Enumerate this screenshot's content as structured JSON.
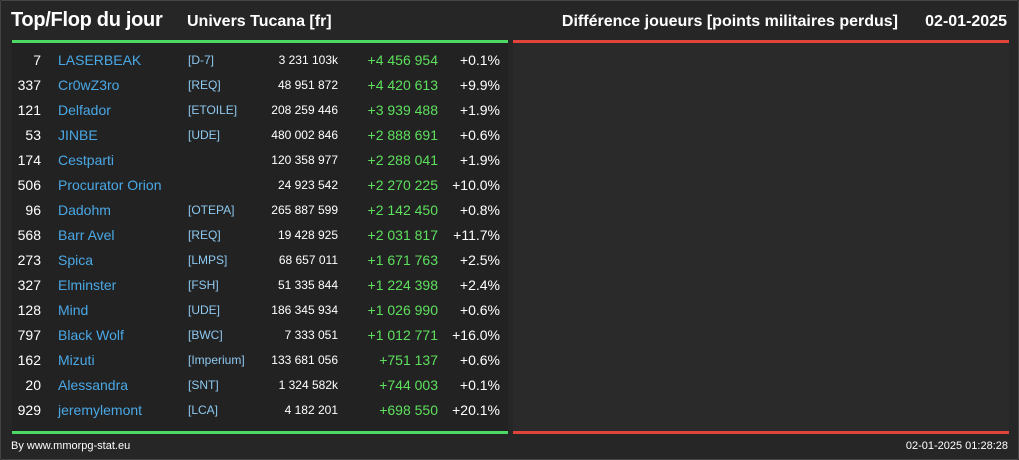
{
  "header": {
    "title": "Top/Flop du jour",
    "universe": "Univers Tucana [fr]",
    "metric": "Différence joueurs [points militaires perdus]",
    "date": "02-01-2025"
  },
  "colors": {
    "positive_bar": "#4cd964",
    "negative_bar": "#e0443a",
    "player_name": "#4aa8e6",
    "alliance": "#8ec9f0",
    "diff_positive": "#5ee05e"
  },
  "top_rows": [
    {
      "rank": "7",
      "name": "LASERBEAK",
      "alliance": "[D-7]",
      "points": "3 231 103k",
      "diff": "+4 456 954",
      "pct": "+0.1%"
    },
    {
      "rank": "337",
      "name": "Cr0wZ3ro",
      "alliance": "[REQ]",
      "points": "48 951 872",
      "diff": "+4 420 613",
      "pct": "+9.9%"
    },
    {
      "rank": "121",
      "name": "Delfador",
      "alliance": "[ETOILE]",
      "points": "208 259 446",
      "diff": "+3 939 488",
      "pct": "+1.9%"
    },
    {
      "rank": "53",
      "name": "JINBE",
      "alliance": "[UDE]",
      "points": "480 002 846",
      "diff": "+2 888 691",
      "pct": "+0.6%"
    },
    {
      "rank": "174",
      "name": "Cestparti",
      "alliance": "",
      "points": "120 358 977",
      "diff": "+2 288 041",
      "pct": "+1.9%"
    },
    {
      "rank": "506",
      "name": "Procurator Orion",
      "alliance": "",
      "points": "24 923 542",
      "diff": "+2 270 225",
      "pct": "+10.0%"
    },
    {
      "rank": "96",
      "name": "Dadohm",
      "alliance": "[OTEPA]",
      "points": "265 887 599",
      "diff": "+2 142 450",
      "pct": "+0.8%"
    },
    {
      "rank": "568",
      "name": "Barr Avel",
      "alliance": "[REQ]",
      "points": "19 428 925",
      "diff": "+2 031 817",
      "pct": "+11.7%"
    },
    {
      "rank": "273",
      "name": "Spica",
      "alliance": "[LMPS]",
      "points": "68 657 011",
      "diff": "+1 671 763",
      "pct": "+2.5%"
    },
    {
      "rank": "327",
      "name": "Elminster",
      "alliance": "[FSH]",
      "points": "51 335 844",
      "diff": "+1 224 398",
      "pct": "+2.4%"
    },
    {
      "rank": "128",
      "name": "Mind",
      "alliance": "[UDE]",
      "points": "186 345 934",
      "diff": "+1 026 990",
      "pct": "+0.6%"
    },
    {
      "rank": "797",
      "name": "Black Wolf",
      "alliance": "[BWC]",
      "points": "7 333 051",
      "diff": "+1 012 771",
      "pct": "+16.0%"
    },
    {
      "rank": "162",
      "name": "Mizuti",
      "alliance": "[Imperium]",
      "points": "133 681 056",
      "diff": "+751 137",
      "pct": "+0.6%"
    },
    {
      "rank": "20",
      "name": "Alessandra",
      "alliance": "[SNT]",
      "points": "1 324 582k",
      "diff": "+744 003",
      "pct": "+0.1%"
    },
    {
      "rank": "929",
      "name": "jeremylemont",
      "alliance": "[LCA]",
      "points": "4 182 201",
      "diff": "+698 550",
      "pct": "+20.1%"
    }
  ],
  "footer": {
    "credit": "By www.mmorpg-stat.eu",
    "timestamp": "02-01-2025 01:28:28"
  }
}
